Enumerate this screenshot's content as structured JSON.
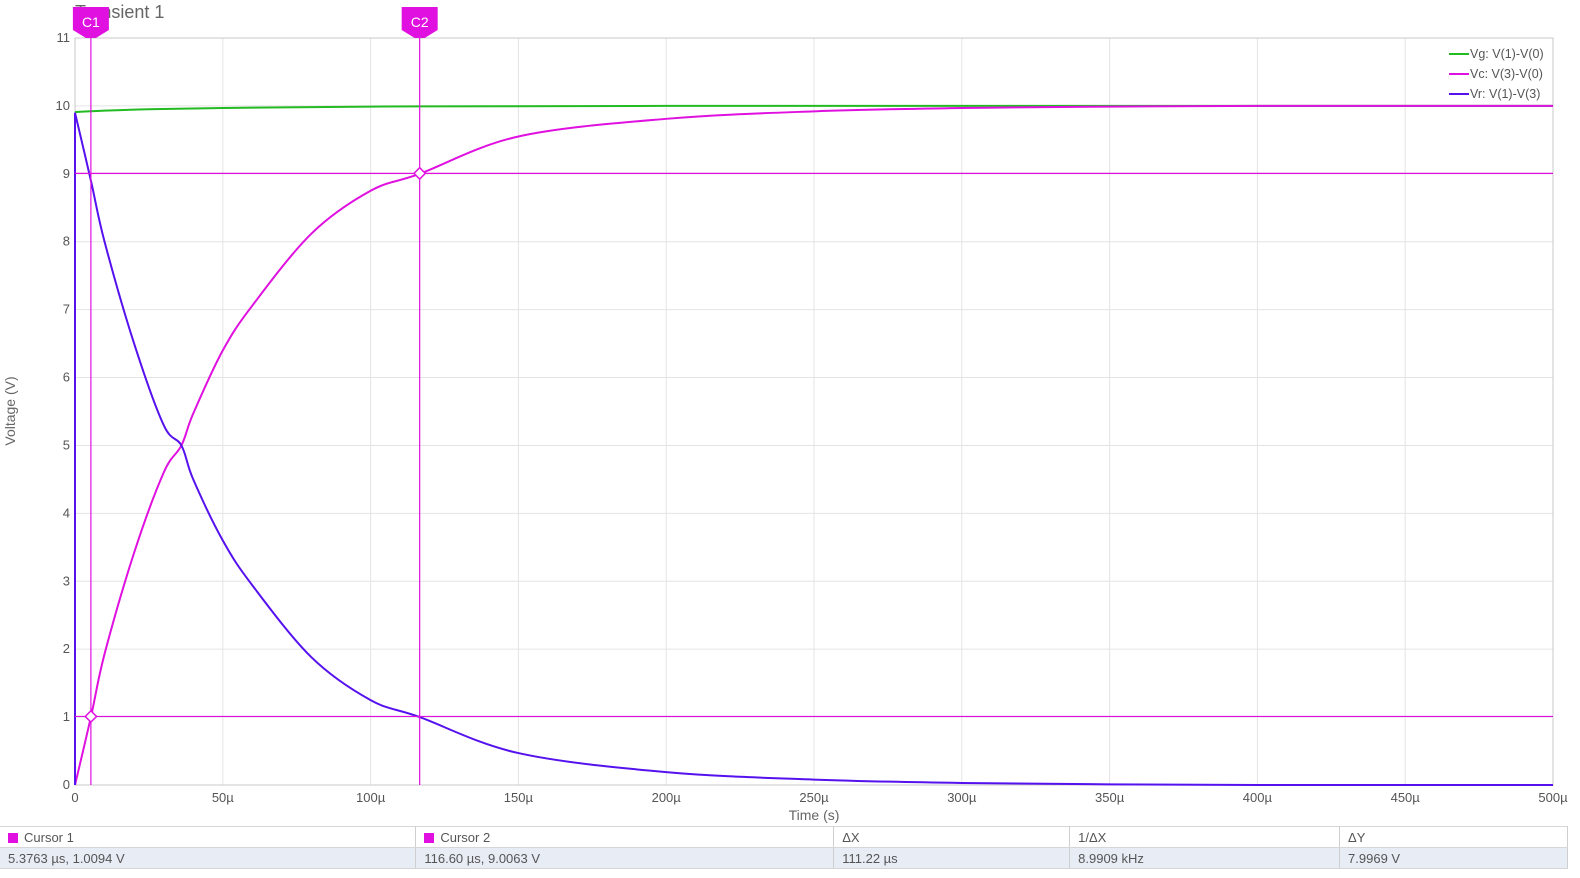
{
  "chart_data": {
    "type": "line",
    "title": "Transient 1",
    "xlabel": "Time (s)",
    "ylabel": "Voltage (V)",
    "xlim": [
      0,
      500
    ],
    "ylim": [
      0,
      11
    ],
    "x_unit": "µs",
    "x_ticks": [
      0,
      50,
      100,
      150,
      200,
      250,
      300,
      350,
      400,
      450,
      500
    ],
    "x_tick_labels": [
      "0",
      "50µ",
      "100µ",
      "150µ",
      "200µ",
      "250µ",
      "300µ",
      "350µ",
      "400µ",
      "450µ",
      "500µ"
    ],
    "y_ticks": [
      0,
      1,
      2,
      3,
      4,
      5,
      6,
      7,
      8,
      9,
      10,
      11
    ],
    "grid": true,
    "legend_position": "top-right",
    "series": [
      {
        "name": "Vg: V(1)-V(0)",
        "color": "#22bb22",
        "x": [
          0,
          10,
          25,
          50,
          100,
          200,
          500
        ],
        "y": [
          9.91,
          9.93,
          9.95,
          9.97,
          9.99,
          10.0,
          10.0
        ]
      },
      {
        "name": "Vc: V(3)-V(0)",
        "color": "#e010e0",
        "x": [
          0,
          5.38,
          10,
          20,
          30,
          36,
          40,
          50,
          60,
          80,
          100,
          116.6,
          150,
          200,
          250,
          300,
          350,
          400,
          450,
          500
        ],
        "y": [
          0,
          1.0,
          1.93,
          3.42,
          4.6,
          5.0,
          5.47,
          6.4,
          7.06,
          8.12,
          8.75,
          9.0,
          9.55,
          9.81,
          9.92,
          9.97,
          9.99,
          10.0,
          10.0,
          10.0
        ]
      },
      {
        "name": "Vr: V(1)-V(3)",
        "color": "#5511ee",
        "x": [
          0,
          5.38,
          10,
          20,
          30,
          36,
          40,
          50,
          60,
          80,
          100,
          116.6,
          150,
          200,
          250,
          300,
          350,
          400,
          450,
          500
        ],
        "y": [
          9.9,
          8.9,
          8.0,
          6.5,
          5.3,
          5.0,
          4.5,
          3.6,
          2.94,
          1.88,
          1.25,
          1.0,
          0.47,
          0.19,
          0.08,
          0.03,
          0.01,
          0.0,
          0.0,
          0.0
        ]
      }
    ],
    "cursors": [
      {
        "label": "C1",
        "x": 5.3763,
        "y": 1.0094,
        "color": "#e010e0"
      },
      {
        "label": "C2",
        "x": 116.6,
        "y": 9.0063,
        "color": "#e010e0"
      }
    ]
  },
  "table": {
    "cursor1_label": "Cursor 1",
    "cursor2_label": "Cursor 2",
    "dx_label": "ΔX",
    "inv_dx_label": "1/ΔX",
    "dy_label": "ΔY",
    "cursor1_value": "5.3763 µs, 1.0094 V",
    "cursor2_value": "116.60 µs, 9.0063 V",
    "dx_value": "111.22 µs",
    "inv_dx_value": "8.9909 kHz",
    "dy_value": "7.9969 V",
    "swatch_color": "#e010e0"
  }
}
